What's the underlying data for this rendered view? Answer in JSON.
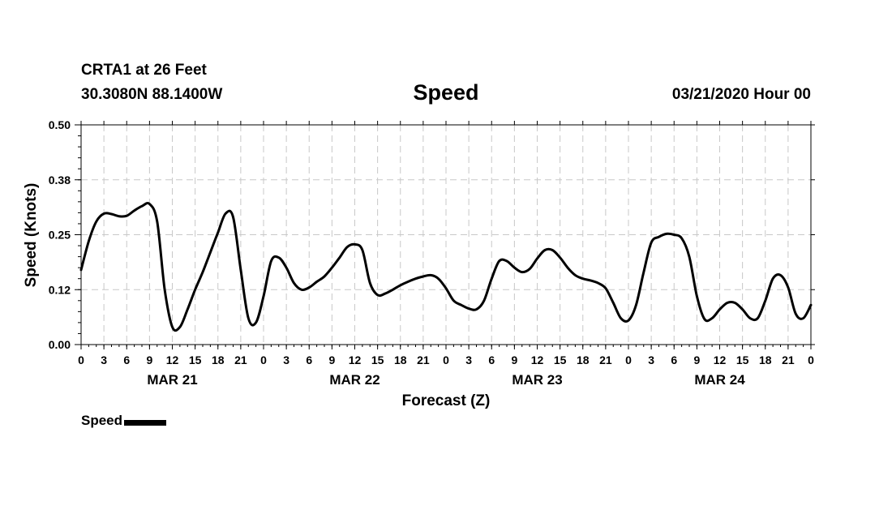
{
  "header": {
    "station": "CRTA1 at 26 Feet",
    "coords": "30.3080N 88.1400W",
    "title": "Speed",
    "runtime": "03/21/2020 Hour 00"
  },
  "chart_data": {
    "type": "line",
    "title": "Speed",
    "xlabel": "Forecast (Z)",
    "ylabel": "Speed (Knots)",
    "ylim": [
      0,
      0.5
    ],
    "yticks": [
      "0.00",
      "0.12",
      "0.25",
      "0.38",
      "0.50"
    ],
    "ytick_values": [
      0,
      0.125,
      0.25,
      0.375,
      0.5
    ],
    "xlim": [
      0,
      96
    ],
    "xtick_step_hours": 3,
    "xtick_labels": [
      "0",
      "3",
      "6",
      "9",
      "12",
      "15",
      "18",
      "21",
      "0",
      "3",
      "6",
      "9",
      "12",
      "15",
      "18",
      "21",
      "0",
      "3",
      "6",
      "9",
      "12",
      "15",
      "18",
      "21",
      "0",
      "3",
      "6",
      "9",
      "12",
      "15",
      "18",
      "21",
      "0"
    ],
    "date_labels": [
      {
        "label": "MAR 21",
        "hour": 12
      },
      {
        "label": "MAR 22",
        "hour": 36
      },
      {
        "label": "MAR 23",
        "hour": 60
      },
      {
        "label": "MAR 24",
        "hour": 84
      }
    ],
    "grid": true,
    "legend": "bottom-left",
    "series": [
      {
        "name": "Speed",
        "color": "#000000",
        "x": [
          0,
          1,
          2,
          3,
          4,
          5,
          6,
          7,
          8,
          9,
          10,
          11,
          12,
          13,
          14,
          15,
          16,
          17,
          18,
          19,
          20,
          21,
          22,
          23,
          24,
          25,
          26,
          27,
          28,
          29,
          30,
          31,
          32,
          33,
          34,
          35,
          36,
          37,
          38,
          39,
          40,
          41,
          42,
          43,
          44,
          45,
          46,
          47,
          48,
          49,
          50,
          51,
          52,
          53,
          54,
          55,
          56,
          57,
          58,
          59,
          60,
          61,
          62,
          63,
          64,
          65,
          66,
          67,
          68,
          69,
          70,
          71,
          72,
          73,
          74,
          75,
          76,
          77,
          78,
          79,
          80,
          81,
          82,
          83,
          84,
          85,
          86,
          87,
          88,
          89,
          90,
          91,
          92,
          93,
          94,
          95,
          96
        ],
        "values": [
          0.17,
          0.235,
          0.28,
          0.298,
          0.297,
          0.292,
          0.293,
          0.305,
          0.315,
          0.32,
          0.28,
          0.125,
          0.04,
          0.04,
          0.08,
          0.125,
          0.165,
          0.21,
          0.255,
          0.298,
          0.29,
          0.17,
          0.06,
          0.05,
          0.11,
          0.19,
          0.198,
          0.175,
          0.14,
          0.125,
          0.13,
          0.143,
          0.155,
          0.175,
          0.198,
          0.222,
          0.228,
          0.215,
          0.14,
          0.113,
          0.116,
          0.125,
          0.135,
          0.143,
          0.15,
          0.155,
          0.158,
          0.15,
          0.128,
          0.1,
          0.09,
          0.082,
          0.08,
          0.1,
          0.15,
          0.19,
          0.19,
          0.175,
          0.165,
          0.172,
          0.196,
          0.215,
          0.215,
          0.198,
          0.175,
          0.158,
          0.15,
          0.146,
          0.14,
          0.128,
          0.095,
          0.06,
          0.055,
          0.09,
          0.165,
          0.232,
          0.245,
          0.252,
          0.25,
          0.242,
          0.2,
          0.11,
          0.058,
          0.06,
          0.08,
          0.095,
          0.095,
          0.08,
          0.06,
          0.06,
          0.1,
          0.15,
          0.158,
          0.13,
          0.07,
          0.06,
          0.09
        ]
      }
    ]
  },
  "legend": {
    "label": "Speed"
  }
}
